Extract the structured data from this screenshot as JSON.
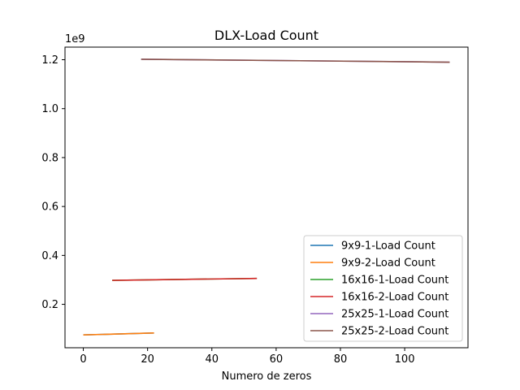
{
  "chart_data": {
    "type": "line",
    "title": "DLX-Load Count",
    "xlabel": "Numero de zeros",
    "ylabel": "",
    "y_offset_label": "1e9",
    "xlim": [
      -5.7,
      119.7
    ],
    "ylim": [
      0.0225,
      1.2515
    ],
    "xticks": [
      0,
      20,
      40,
      60,
      80,
      100
    ],
    "xtick_labels": [
      "0",
      "20",
      "40",
      "60",
      "80",
      "100"
    ],
    "yticks": [
      0.2,
      0.4,
      0.6,
      0.8,
      1.0,
      1.2
    ],
    "ytick_labels": [
      "0.2",
      "0.4",
      "0.6",
      "0.8",
      "1.0",
      "1.2"
    ],
    "legend_position": "lower-right",
    "series": [
      {
        "name": "9x9-1-Load Count",
        "color": "#1f77b4",
        "x": [
          0,
          22
        ],
        "y": [
          0.075,
          0.083
        ]
      },
      {
        "name": "9x9-2-Load Count",
        "color": "#ff7f0e",
        "x": [
          0,
          22
        ],
        "y": [
          0.075,
          0.083
        ]
      },
      {
        "name": "16x16-1-Load Count",
        "color": "#2ca02c",
        "x": [
          9,
          54
        ],
        "y": [
          0.298,
          0.306
        ]
      },
      {
        "name": "16x16-2-Load Count",
        "color": "#d62728",
        "x": [
          9,
          54
        ],
        "y": [
          0.298,
          0.306
        ]
      },
      {
        "name": "25x25-1-Load Count",
        "color": "#9467bd",
        "x": [
          18,
          114
        ],
        "y": [
          1.202,
          1.19
        ]
      },
      {
        "name": "25x25-2-Load Count",
        "color": "#8c564b",
        "x": [
          18,
          114
        ],
        "y": [
          1.202,
          1.19
        ]
      }
    ]
  }
}
